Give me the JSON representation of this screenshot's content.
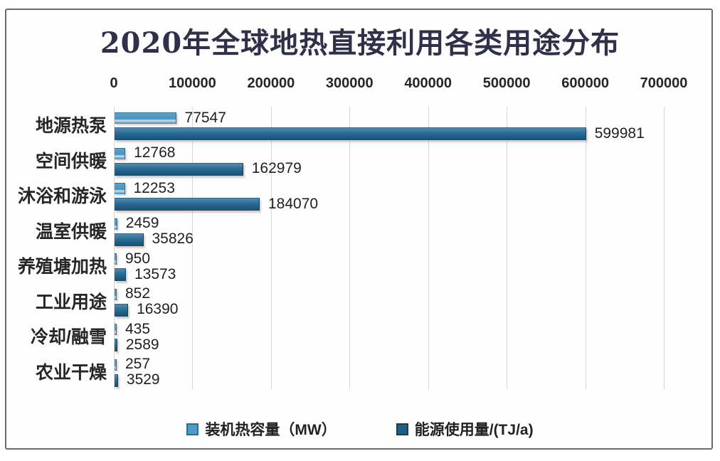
{
  "title": "2020年全球地热直接利用各类用途分布",
  "chart_data": {
    "type": "bar",
    "orientation": "horizontal",
    "title": "2020年全球地热直接利用各类用途分布",
    "categories": [
      "地源热泵",
      "空间供暖",
      "沐浴和游泳",
      "温室供暖",
      "养殖塘加热",
      "工业用途",
      "冷却/融雪",
      "农业干燥"
    ],
    "series": [
      {
        "name": "装机热容量（MW）",
        "color": "#4c9cc7",
        "values": [
          77547,
          12768,
          12253,
          2459,
          950,
          852,
          435,
          257
        ]
      },
      {
        "name": "能源使用量/(TJ/a)",
        "color": "#205e85",
        "values": [
          599981,
          162979,
          184070,
          35826,
          13573,
          16390,
          2589,
          3529
        ]
      }
    ],
    "x_ticks": [
      0,
      100000,
      200000,
      300000,
      400000,
      500000,
      600000,
      700000
    ],
    "xlim": [
      0,
      700000
    ],
    "grid": "vertical-only",
    "legend_position": "bottom",
    "value_labels": true
  },
  "colors": {
    "series_light": "#4c9cc7",
    "series_dark": "#205e85",
    "gridline": "#d5d5d5",
    "frame_border": "#6a6a6a",
    "title_text": "#30304a",
    "label_text": "#262626"
  }
}
